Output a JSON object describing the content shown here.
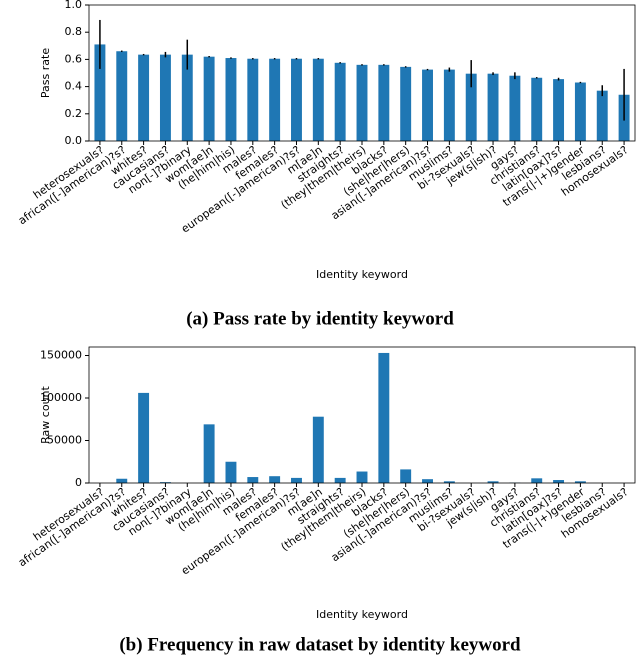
{
  "chart_data": [
    {
      "type": "bar",
      "title": "(a) Pass rate by identity keyword",
      "xlabel": "Identity keyword",
      "ylabel": "Pass rate",
      "categories": [
        "heterosexuals?",
        "african([-]american)?s?",
        "whites?",
        "caucasians?",
        "non[-]?binary",
        "wom[ae]n",
        "(he|him|his)",
        "males?",
        "females?",
        "european([-]american)?s?",
        "m[ae]n",
        "straights?",
        "(they|them|theirs)",
        "blacks?",
        "(she|her|hers)",
        "asian([-]american)?s?",
        "muslims?",
        "bi-?sexuals?",
        "jew(s|ish)?",
        "gays?",
        "christians?",
        "latin[oax]?s?",
        "trans(|-|+)gender",
        "lesbians?",
        "homosexuals?"
      ],
      "values": [
        0.71,
        0.66,
        0.635,
        0.635,
        0.635,
        0.62,
        0.61,
        0.605,
        0.605,
        0.605,
        0.605,
        0.575,
        0.56,
        0.56,
        0.545,
        0.525,
        0.525,
        0.495,
        0.495,
        0.48,
        0.465,
        0.455,
        0.43,
        0.37,
        0.34
      ],
      "errors": [
        0.18,
        0.005,
        0.005,
        0.02,
        0.11,
        0.005,
        0.005,
        0.005,
        0.005,
        0.005,
        0.005,
        0.005,
        0.005,
        0.005,
        0.005,
        0.005,
        0.015,
        0.1,
        0.01,
        0.025,
        0.005,
        0.01,
        0.005,
        0.04,
        0.19
      ],
      "color": "#1f77b4",
      "ylim": [
        0,
        1
      ],
      "yticks": [
        {
          "value": 0,
          "label": "0.0"
        },
        0.2,
        0.4,
        0.6,
        0.8,
        {
          "value": 1,
          "label": "1.0"
        }
      ]
    },
    {
      "type": "bar",
      "title": "(b) Frequency in raw dataset by identity keyword",
      "xlabel": "Identity keyword",
      "ylabel": "Raw count",
      "categories": [
        "heterosexuals?",
        "african([-]american)?s?",
        "whites?",
        "caucasians?",
        "non[-]?binary",
        "wom[ae]n",
        "(he|him|his)",
        "males?",
        "females?",
        "european([-]american)?s?",
        "m[ae]n",
        "straights?",
        "(they|them|theirs)",
        "blacks?",
        "(she|her|hers)",
        "asian([-]american)?s?",
        "muslims?",
        "bi-?sexuals?",
        "jew(s|ish)?",
        "gays?",
        "christians?",
        "latin[oax]?s?",
        "trans(|-|+)gender",
        "lesbians?",
        "homosexuals?"
      ],
      "values": [
        0,
        5000,
        106000,
        1000,
        0,
        69000,
        25000,
        7000,
        8000,
        6000,
        78000,
        6000,
        13500,
        153000,
        16000,
        4500,
        2000,
        0,
        2000,
        500,
        5500,
        3500,
        2000,
        0,
        0
      ],
      "color": "#1f77b4",
      "ylim": [
        0,
        160000
      ],
      "yticks": [
        0,
        50000,
        100000,
        150000
      ]
    }
  ]
}
